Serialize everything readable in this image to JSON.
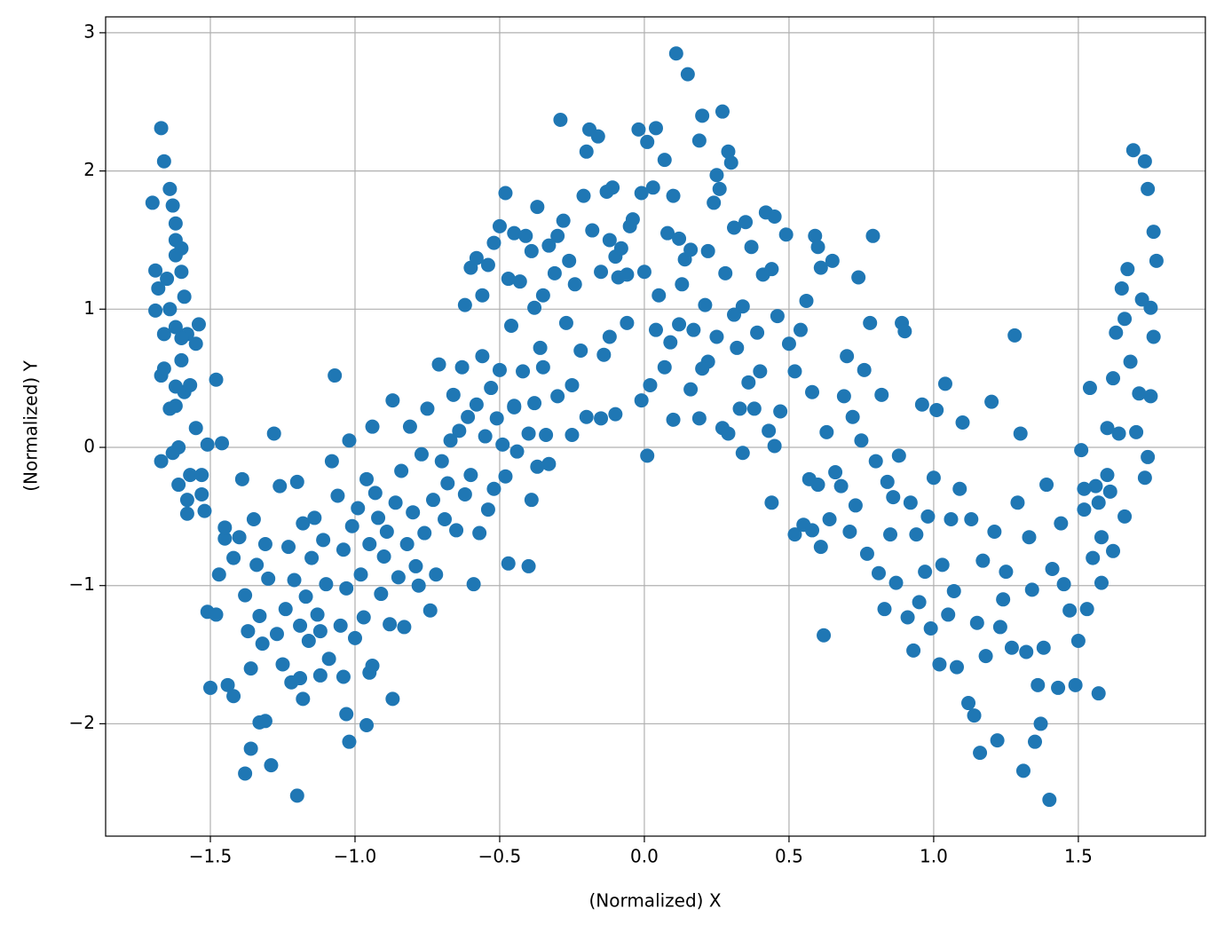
{
  "chart_data": {
    "type": "scatter",
    "x_label": "(Normalized) X",
    "y_label": "(Normalized) Y",
    "color": "#1f77b4",
    "grid": true,
    "xlim": [
      -1.862,
      1.939
    ],
    "ylim": [
      -2.813,
      3.115
    ],
    "xticks": [
      {
        "value": -1.5,
        "label": "−1.5"
      },
      {
        "value": -1.0,
        "label": "−1.0"
      },
      {
        "value": -0.5,
        "label": "−0.5"
      },
      {
        "value": 0,
        "label": "0.0"
      },
      0.5,
      {
        "value": 1,
        "label": "1.0"
      },
      1.5
    ],
    "yticks": [
      {
        "value": -2,
        "label": "−2"
      },
      {
        "value": -1,
        "label": "−1"
      },
      0,
      1,
      2,
      3
    ],
    "x": [
      -1.67,
      -1.66,
      -1.7,
      -1.64,
      -1.63,
      -1.69,
      -1.68,
      -1.69,
      -1.66,
      -1.67,
      -1.66,
      -1.67,
      -1.64,
      -1.62,
      -1.62,
      -1.6,
      -1.6,
      -1.59,
      -1.62,
      -1.6,
      -1.62,
      -1.64,
      -1.62,
      -1.59,
      -1.57,
      -1.58,
      -1.55,
      -1.54,
      -1.55,
      -1.61,
      -1.58,
      -1.58,
      -1.57,
      -1.53,
      -1.53,
      -1.52,
      -1.51,
      -1.46,
      -1.48,
      -1.63,
      -1.61,
      -1.65,
      -1.62,
      -1.6,
      -1.51,
      -1.48,
      -1.5,
      -1.44,
      -1.42,
      -1.38,
      -1.36,
      -1.33,
      -1.31,
      -1.29,
      -1.2,
      -1.18,
      -1.19,
      -1.12,
      -1.04,
      -1.03,
      -1.02,
      -0.96,
      -0.95,
      -0.94,
      -0.87,
      -1.47,
      -1.45,
      -1.45,
      -1.42,
      -1.4,
      -1.39,
      -1.38,
      -1.37,
      -1.36,
      -1.35,
      -1.34,
      -1.33,
      -1.32,
      -1.31,
      -1.3,
      -1.28,
      -1.27,
      -1.26,
      -1.25,
      -1.24,
      -1.23,
      -1.22,
      -1.21,
      -1.2,
      -1.19,
      -1.18,
      -1.17,
      -1.16,
      -1.15,
      -1.14,
      -1.13,
      -1.12,
      -1.11,
      -1.1,
      -1.09,
      -1.08,
      -1.07,
      -1.06,
      -1.05,
      -1.04,
      -1.03,
      -1.02,
      -1.01,
      -1.0,
      -0.99,
      -0.98,
      -0.97,
      -0.96,
      -0.95,
      -0.94,
      -0.93,
      -0.92,
      -0.91,
      -0.9,
      -0.89,
      -0.88,
      -0.87,
      -0.86,
      -0.85,
      -0.84,
      -0.83,
      -0.82,
      -0.81,
      -0.8,
      -0.79,
      -0.78,
      -0.77,
      -0.76,
      -0.75,
      -0.74,
      -0.73,
      -0.72,
      -0.71,
      -0.7,
      -0.69,
      -0.68,
      -0.67,
      -0.66,
      -0.65,
      -0.64,
      -0.63,
      -0.62,
      -0.61,
      -0.6,
      -0.59,
      -0.58,
      -0.57,
      -0.56,
      -0.55,
      -0.54,
      -0.53,
      -0.52,
      -0.51,
      -0.5,
      -0.49,
      -0.48,
      -0.47,
      -0.46,
      -0.45,
      -0.44,
      -0.42,
      -0.4,
      -0.39,
      -0.38,
      -0.37,
      -0.36,
      -0.34,
      -0.33,
      -0.62,
      -0.6,
      -0.58,
      -0.56,
      -0.54,
      -0.52,
      -0.5,
      -0.48,
      -0.47,
      -0.45,
      -0.43,
      -0.41,
      -0.39,
      -0.38,
      -0.37,
      -0.35,
      -0.33,
      -0.31,
      -0.3,
      -0.29,
      -0.28,
      -0.27,
      -0.26,
      -0.24,
      -0.22,
      -0.21,
      -0.2,
      -0.19,
      -0.18,
      -0.16,
      -0.15,
      -0.14,
      -0.13,
      -0.12,
      -0.11,
      -0.1,
      -0.09,
      -0.08,
      -0.06,
      -0.05,
      -0.04,
      -0.02,
      -0.01,
      0.0,
      0.01,
      0.02,
      0.03,
      0.04,
      0.05,
      0.07,
      0.08,
      0.09,
      0.1,
      0.11,
      0.12,
      0.13,
      0.14,
      0.15,
      0.16,
      0.17,
      0.19,
      0.2,
      0.21,
      0.22,
      0.24,
      0.25,
      0.26,
      0.27,
      0.28,
      0.29,
      0.3,
      0.31,
      0.32,
      0.33,
      0.34,
      0.35,
      0.36,
      0.37,
      0.39,
      0.41,
      0.42,
      0.43,
      0.44,
      0.45,
      0.46,
      0.47,
      0.49,
      0.5,
      0.52,
      0.54,
      0.56,
      0.58,
      0.59,
      0.6,
      0.61,
      -0.01,
      0.01,
      0.07,
      0.1,
      0.16,
      0.19,
      0.22,
      0.27,
      0.29,
      0.34,
      0.38,
      0.44,
      0.45,
      -0.1,
      -0.15,
      -0.2,
      -0.25,
      -0.3,
      -0.12,
      -0.06,
      0.04,
      0.12,
      0.2,
      0.25,
      0.31,
      0.4,
      -0.25,
      -0.35,
      -0.4,
      -0.45,
      0.52,
      0.55,
      0.57,
      0.58,
      0.6,
      0.61,
      0.62,
      0.63,
      0.64,
      0.65,
      0.66,
      0.68,
      0.69,
      0.7,
      0.71,
      0.72,
      0.73,
      0.74,
      0.75,
      0.76,
      0.77,
      0.78,
      0.79,
      0.8,
      0.81,
      0.82,
      0.83,
      0.84,
      0.85,
      0.86,
      0.87,
      0.88,
      0.89,
      0.9,
      0.91,
      0.92,
      0.93,
      0.94,
      0.95,
      0.96,
      0.97,
      0.98,
      0.99,
      1.0,
      1.01,
      1.02,
      1.03,
      1.04,
      1.05,
      1.06,
      1.07,
      1.08,
      1.09,
      1.1,
      1.12,
      1.13,
      1.14,
      1.15,
      1.16,
      1.17,
      1.18,
      1.2,
      1.21,
      1.22,
      1.23,
      1.24,
      1.25,
      1.27,
      1.28,
      1.29,
      1.3,
      1.31,
      1.32,
      1.33,
      1.34,
      1.35,
      1.36,
      1.37,
      1.38,
      1.39,
      1.4,
      1.41,
      1.43,
      1.44,
      1.45,
      1.47,
      1.49,
      1.5,
      1.51,
      1.52,
      1.53,
      1.54,
      1.55,
      1.56,
      1.57,
      1.58,
      1.6,
      1.61,
      1.62,
      1.63,
      1.64,
      1.65,
      1.66,
      1.67,
      1.68,
      1.69,
      1.7,
      1.71,
      1.72,
      1.73,
      1.74,
      1.75,
      1.76,
      1.77,
      1.73,
      1.74,
      1.75,
      1.76,
      1.58,
      1.57,
      1.62,
      1.66,
      1.6,
      1.52
    ],
    "y": [
      2.31,
      2.07,
      1.77,
      1.87,
      1.75,
      1.28,
      1.15,
      0.99,
      0.82,
      0.52,
      0.57,
      -0.1,
      1.0,
      1.62,
      1.5,
      1.44,
      1.27,
      1.09,
      0.87,
      0.63,
      0.44,
      0.28,
      0.3,
      0.4,
      0.45,
      0.82,
      0.75,
      0.89,
      0.14,
      -0.27,
      -0.38,
      -0.48,
      -0.2,
      -0.2,
      -0.34,
      -0.46,
      0.02,
      0.03,
      0.49,
      -0.04,
      0.0,
      1.22,
      1.39,
      0.79,
      -1.19,
      -1.21,
      -1.74,
      -1.72,
      -1.8,
      -2.36,
      -2.18,
      -1.99,
      -1.98,
      -2.3,
      -2.52,
      -1.82,
      -1.67,
      -1.65,
      -1.66,
      -1.93,
      -2.13,
      -2.01,
      -1.63,
      -1.58,
      -1.82,
      -0.92,
      -0.66,
      -0.58,
      -0.8,
      -0.65,
      -0.23,
      -1.07,
      -1.33,
      -1.6,
      -0.52,
      -0.85,
      -1.22,
      -1.42,
      -0.7,
      -0.95,
      0.1,
      -1.35,
      -0.28,
      -1.57,
      -1.17,
      -0.72,
      -1.7,
      -0.96,
      -0.25,
      -1.29,
      -0.55,
      -1.08,
      -1.4,
      -0.8,
      -0.51,
      -1.21,
      -1.33,
      -0.67,
      -0.99,
      -1.53,
      -0.1,
      0.52,
      -0.35,
      -1.29,
      -0.74,
      -1.02,
      0.05,
      -0.57,
      -1.38,
      -0.44,
      -0.92,
      -1.23,
      -0.23,
      -0.7,
      0.15,
      -0.33,
      -0.51,
      -1.06,
      -0.79,
      -0.61,
      -1.28,
      0.34,
      -0.4,
      -0.94,
      -0.17,
      -1.3,
      -0.7,
      0.15,
      -0.47,
      -0.86,
      -1.0,
      -0.05,
      -0.62,
      0.28,
      -1.18,
      -0.38,
      -0.92,
      0.6,
      -0.1,
      -0.52,
      -0.26,
      0.05,
      0.38,
      -0.6,
      0.12,
      0.58,
      -0.34,
      0.22,
      -0.2,
      -0.99,
      0.31,
      -0.62,
      0.66,
      0.08,
      -0.45,
      0.43,
      -0.3,
      0.21,
      0.56,
      0.02,
      -0.21,
      -0.84,
      0.88,
      0.3,
      -0.03,
      0.55,
      -0.86,
      -0.38,
      0.32,
      -0.14,
      0.72,
      0.09,
      -0.12,
      1.03,
      1.3,
      1.37,
      1.1,
      1.32,
      1.48,
      1.6,
      1.84,
      1.22,
      1.55,
      1.2,
      1.53,
      1.42,
      1.01,
      1.74,
      1.1,
      1.46,
      1.26,
      1.53,
      2.37,
      1.64,
      0.9,
      1.35,
      1.18,
      0.7,
      1.82,
      2.14,
      2.3,
      1.57,
      2.25,
      1.27,
      0.67,
      1.85,
      1.5,
      1.88,
      1.38,
      1.23,
      1.44,
      1.25,
      1.6,
      1.65,
      2.3,
      1.84,
      1.27,
      2.21,
      0.45,
      1.88,
      2.31,
      1.1,
      2.08,
      1.55,
      0.76,
      1.82,
      2.85,
      1.51,
      1.18,
      1.36,
      2.7,
      1.43,
      0.85,
      2.22,
      2.4,
      1.03,
      1.42,
      1.77,
      1.97,
      1.87,
      2.43,
      1.26,
      2.14,
      2.06,
      1.59,
      0.72,
      0.28,
      1.02,
      1.63,
      0.47,
      1.45,
      0.83,
      1.25,
      1.7,
      0.12,
      1.29,
      1.67,
      0.95,
      0.26,
      1.54,
      0.75,
      0.55,
      0.85,
      1.06,
      0.4,
      1.53,
      1.45,
      1.3,
      0.34,
      -0.06,
      0.58,
      0.2,
      0.42,
      0.21,
      0.62,
      0.14,
      0.1,
      -0.04,
      0.28,
      -0.4,
      0.01,
      0.24,
      0.21,
      0.22,
      0.09,
      0.37,
      0.8,
      0.9,
      0.85,
      0.89,
      0.57,
      0.8,
      0.96,
      0.55,
      0.45,
      0.58,
      0.1,
      0.29,
      -0.63,
      -0.56,
      -0.23,
      -0.6,
      -0.27,
      -0.72,
      -1.36,
      0.11,
      -0.52,
      1.35,
      -0.18,
      -0.28,
      0.37,
      0.66,
      -0.61,
      0.22,
      -0.42,
      1.23,
      0.05,
      0.56,
      -0.77,
      0.9,
      1.53,
      -0.1,
      -0.91,
      0.38,
      -1.17,
      -0.25,
      -0.63,
      -0.36,
      -0.98,
      -0.06,
      0.9,
      0.84,
      -1.23,
      -0.4,
      -1.47,
      -0.63,
      -1.12,
      0.31,
      -0.9,
      -0.5,
      -1.31,
      -0.22,
      0.27,
      -1.57,
      -0.85,
      0.46,
      -1.21,
      -0.52,
      -1.04,
      -1.59,
      -0.3,
      0.18,
      -1.85,
      -0.52,
      -1.94,
      -1.27,
      -2.21,
      -0.82,
      -1.51,
      0.33,
      -0.61,
      -2.12,
      -1.3,
      -1.1,
      -0.9,
      -1.45,
      0.81,
      -0.4,
      0.1,
      -2.34,
      -1.48,
      -0.65,
      -1.03,
      -2.13,
      -1.72,
      -2.0,
      -1.45,
      -0.27,
      -2.55,
      -0.88,
      -1.74,
      -0.55,
      -0.99,
      -1.18,
      -1.72,
      -1.4,
      -0.02,
      -0.45,
      -1.17,
      0.43,
      -0.8,
      -0.28,
      -1.78,
      -0.65,
      0.14,
      -0.32,
      0.5,
      0.83,
      0.1,
      1.15,
      0.93,
      1.29,
      0.62,
      2.15,
      0.11,
      0.39,
      1.07,
      2.07,
      1.87,
      1.01,
      1.56,
      1.35,
      -0.22,
      -0.07,
      0.37,
      0.8,
      -0.98,
      -0.4,
      -0.75,
      -0.5,
      -0.2,
      -0.3
    ]
  }
}
